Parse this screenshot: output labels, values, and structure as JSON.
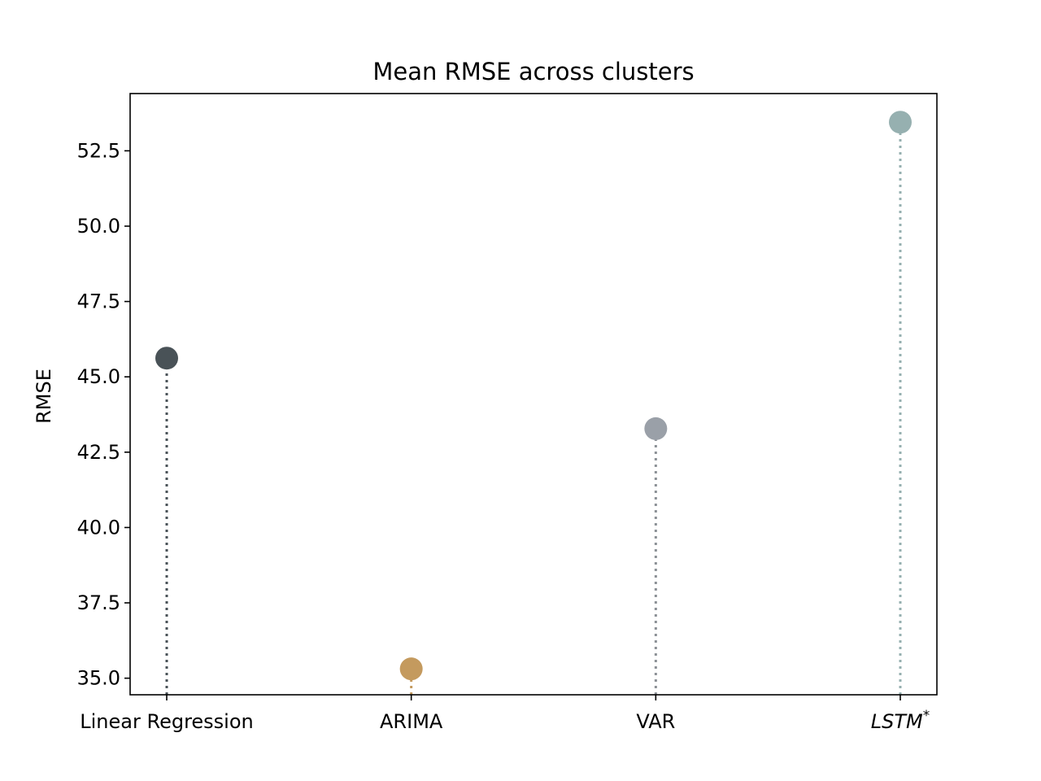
{
  "chart_data": {
    "type": "lollipop",
    "title": "Mean RMSE across clusters",
    "xlabel": "",
    "ylabel": "RMSE",
    "categories": [
      "Linear Regression",
      "ARIMA",
      "VAR",
      "LSTM"
    ],
    "category_superscripts": [
      "",
      "",
      "",
      "*"
    ],
    "category_italic": [
      false,
      false,
      false,
      true
    ],
    "values": [
      45.62,
      35.31,
      43.28,
      53.45
    ],
    "colors": [
      "#495257",
      "#c49a5e",
      "#9aa0a8",
      "#96b0b0"
    ],
    "stem_colors": [
      "#495257",
      "#c49a5e",
      "#8c9196",
      "#96b0b0"
    ],
    "ylim": [
      34.45,
      54.4
    ],
    "yticks": [
      35.0,
      37.5,
      40.0,
      42.5,
      45.0,
      47.5,
      50.0,
      52.5
    ],
    "ytick_labels": [
      "35.0",
      "37.5",
      "40.0",
      "42.5",
      "45.0",
      "47.5",
      "50.0",
      "52.5"
    ],
    "stem_style": "dotted",
    "grid": false,
    "legend": "none"
  }
}
